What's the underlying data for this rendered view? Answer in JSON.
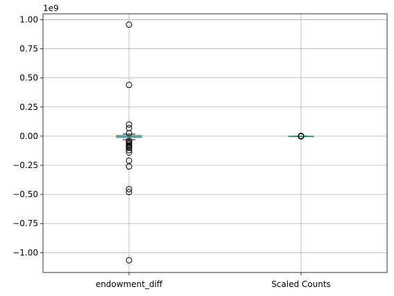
{
  "chart_data": {
    "type": "box",
    "offset_text": "1e9",
    "ylim": [
      -1.17,
      1.05
    ],
    "yticks": [
      1.0,
      0.75,
      0.5,
      0.25,
      0.0,
      -0.25,
      -0.5,
      -0.75,
      -1.0
    ],
    "ytick_labels": [
      "1.00",
      "0.75",
      "0.50",
      "0.25",
      "0.00",
      "−0.25",
      "−0.50",
      "−0.75",
      "−1.00"
    ],
    "grid": true,
    "categories": [
      "endowment_diff",
      "Scaled Counts"
    ],
    "boxes": [
      {
        "name": "endowment_diff",
        "q1": -0.012,
        "median": -0.004,
        "q3": 0.006,
        "whisker_low": -0.03,
        "whisker_high": 0.018,
        "fliers": [
          0.957,
          0.44,
          0.1,
          0.07,
          0.025,
          -0.04,
          -0.05,
          -0.06,
          -0.07,
          -0.08,
          -0.09,
          -0.1,
          -0.12,
          -0.14,
          -0.21,
          -0.26,
          -0.455,
          -0.48,
          -1.065
        ]
      },
      {
        "name": "Scaled Counts",
        "q1": 0.0,
        "median": 0.0,
        "q3": 0.0,
        "whisker_low": 0.0,
        "whisker_high": 0.0,
        "fliers": [
          0.002,
          0.001,
          0.0,
          -0.001,
          -0.002
        ]
      }
    ]
  }
}
